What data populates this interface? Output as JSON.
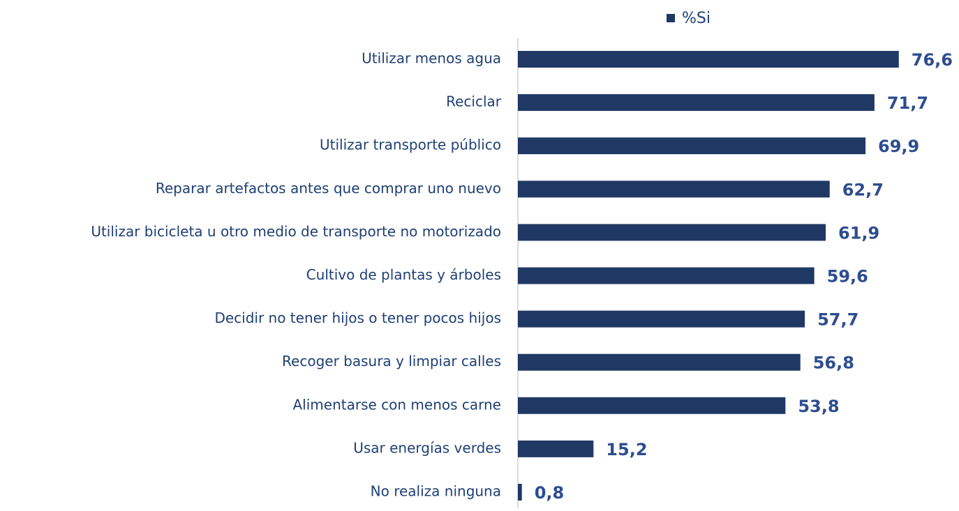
{
  "chart_data": {
    "type": "bar",
    "orientation": "horizontal",
    "categories": [
      "Utilizar menos agua",
      "Reciclar",
      "Utilizar transporte público",
      "Reparar artefactos antes que comprar uno nuevo",
      "Utilizar bicicleta u otro medio de transporte no motorizado",
      "Cultivo de plantas y árboles",
      "Decidir no tener hijos o tener pocos hijos",
      "Recoger basura y limpiar calles",
      "Alimentarse con menos carne",
      "Usar energías verdes",
      "No realiza ninguna"
    ],
    "series": [
      {
        "name": "%Si",
        "color": "#203864",
        "values": [
          76.6,
          71.7,
          69.9,
          62.7,
          61.9,
          59.6,
          57.7,
          56.8,
          53.8,
          15.2,
          0.8
        ],
        "value_labels": [
          "76,6",
          "71,7",
          "69,9",
          "62,7",
          "61,9",
          "59,6",
          "57,7",
          "56,8",
          "53,8",
          "15,2",
          "0,8"
        ]
      }
    ],
    "xlim": [
      0,
      88
    ],
    "legend": "top"
  }
}
